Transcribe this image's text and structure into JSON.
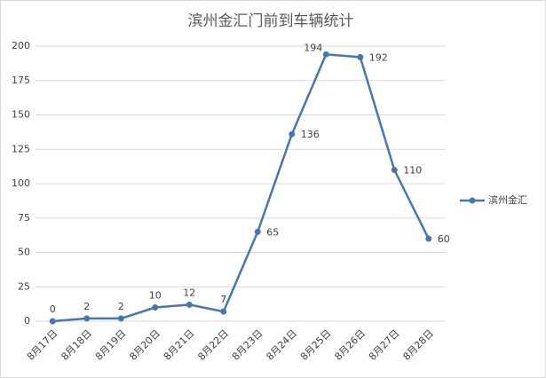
{
  "chart_data": {
    "type": "line",
    "title": "滨州金汇门前到车辆统计",
    "categories": [
      "8月17日",
      "8月18日",
      "8月19日",
      "8月20日",
      "8月21日",
      "8月22日",
      "8月23日",
      "8月24日",
      "8月25日",
      "8月26日",
      "8月27日",
      "8月28日"
    ],
    "series": [
      {
        "name": "滨州金汇",
        "color": "#4a76b0",
        "values": [
          0,
          2,
          2,
          10,
          12,
          7,
          65,
          136,
          194,
          192,
          110,
          60
        ]
      }
    ],
    "ylim": [
      0,
      200
    ],
    "yticks": [
      0,
      25,
      50,
      75,
      100,
      125,
      150,
      175,
      200
    ],
    "grid": true,
    "legend": "right"
  }
}
